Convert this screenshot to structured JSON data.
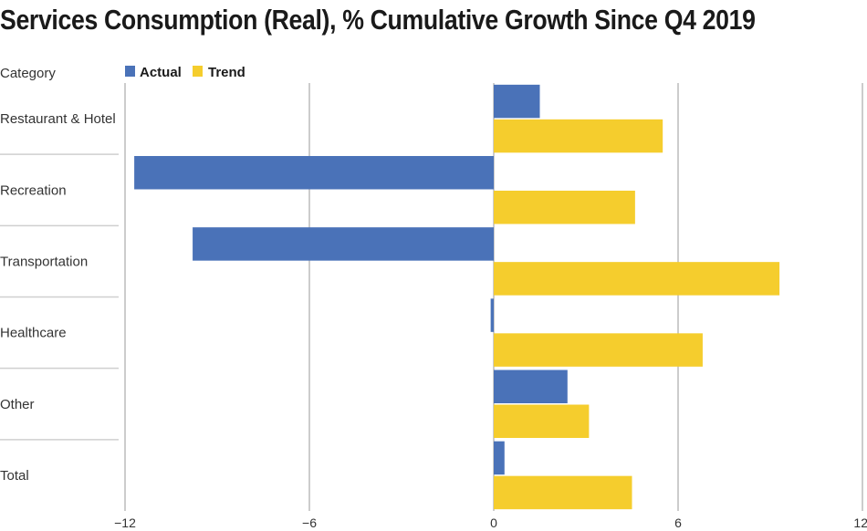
{
  "chart_data": {
    "type": "bar",
    "orientation": "horizontal",
    "title": "Services Consumption (Real), % Cumulative Growth Since Q4 2019",
    "category_header": "Category",
    "categories": [
      "Restaurant & Hotel",
      "Recreation",
      "Transportation",
      "Healthcare",
      "Other",
      "Total"
    ],
    "series": [
      {
        "name": "Actual",
        "color": "#4a72b8",
        "values": [
          1.5,
          -11.7,
          -9.8,
          -0.1,
          2.4,
          0.35
        ]
      },
      {
        "name": "Trend",
        "color": "#f5cd2d",
        "values": [
          5.5,
          4.6,
          9.3,
          6.8,
          3.1,
          4.5
        ]
      }
    ],
    "xlim": [
      -12,
      12
    ],
    "xticks": [
      -12,
      -6,
      0,
      6,
      12
    ],
    "xtick_labels": [
      "−12",
      "−6",
      "0",
      "6",
      "12"
    ],
    "legend_position": "top-left",
    "grid": true
  }
}
